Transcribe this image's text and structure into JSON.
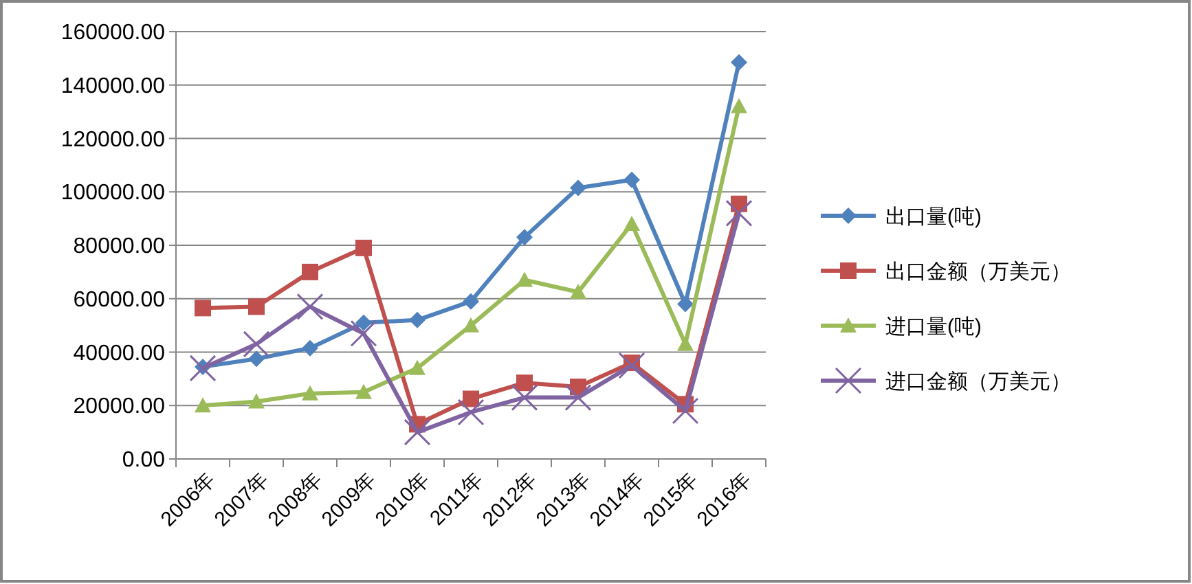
{
  "chart_data": {
    "type": "line",
    "categories": [
      "2006年",
      "2007年",
      "2008年",
      "2009年",
      "2010年",
      "2011年",
      "2012年",
      "2013年",
      "2014年",
      "2015年",
      "2016年"
    ],
    "series": [
      {
        "name": "出口量(吨)",
        "color": "#4f81bd",
        "marker": "diamond",
        "values": [
          34500,
          37500,
          41500,
          51000,
          52000,
          59000,
          83000,
          101500,
          104500,
          58000,
          148500
        ]
      },
      {
        "name": "出口金额（万美元）",
        "color": "#c0504d",
        "marker": "square",
        "values": [
          56500,
          57000,
          70000,
          79000,
          13000,
          22500,
          28500,
          27000,
          36000,
          20500,
          95500
        ]
      },
      {
        "name": "进口量(吨)",
        "color": "#9bbb59",
        "marker": "triangle",
        "values": [
          20000,
          21500,
          24500,
          25000,
          34000,
          50000,
          67000,
          62500,
          88000,
          43000,
          132000
        ]
      },
      {
        "name": "进口金额（万美元）",
        "color": "#8064a2",
        "marker": "cross",
        "values": [
          34000,
          43000,
          57000,
          47000,
          10000,
          17500,
          23000,
          23000,
          35000,
          18000,
          92000
        ]
      }
    ],
    "ylim": [
      0,
      160000
    ],
    "yticks": [
      {
        "value": 0,
        "label": "0.00"
      },
      {
        "value": 20000,
        "label": "20000.00"
      },
      {
        "value": 40000,
        "label": "40000.00"
      },
      {
        "value": 60000,
        "label": "60000.00"
      },
      {
        "value": 80000,
        "label": "80000.00"
      },
      {
        "value": 100000,
        "label": "100000.00"
      },
      {
        "value": 120000,
        "label": "120000.00"
      },
      {
        "value": 140000,
        "label": "140000.00"
      },
      {
        "value": 160000,
        "label": "160000.00"
      }
    ],
    "grid": "y",
    "legend": "right"
  }
}
